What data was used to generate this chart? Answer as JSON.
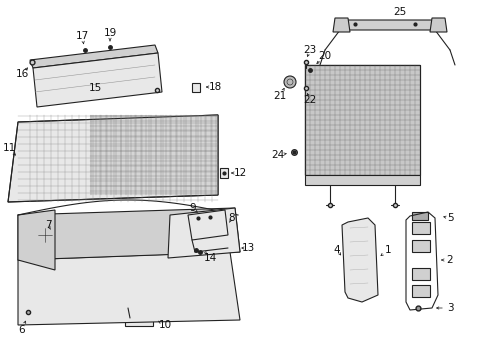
{
  "bg_color": "#ffffff",
  "line_color": "#222222",
  "label_color": "#111111",
  "figsize": [
    4.89,
    3.6
  ],
  "dpi": 100,
  "grid_color": "#888888",
  "fill_light": "#e8e8e8",
  "fill_mid": "#d0d0d0",
  "fill_dark": "#bbbbbb"
}
